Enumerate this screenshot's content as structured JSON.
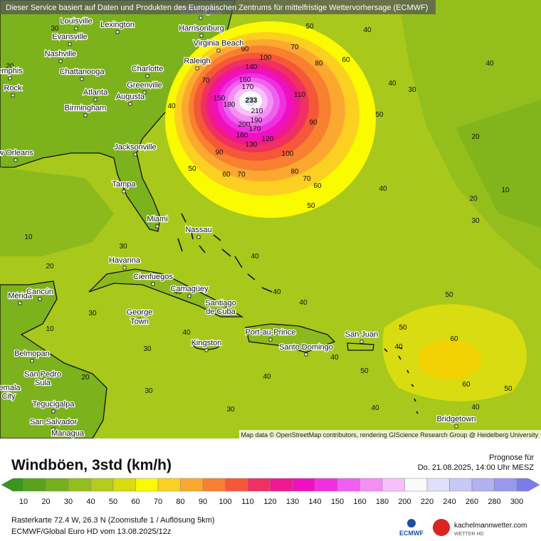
{
  "header": {
    "disclaimer": "Dieser Service basiert auf Daten und Produkten des Europäischen Zentrums für mittelfristige Wettervorhersage (ECMWF)"
  },
  "map": {
    "cities": [
      "Washington",
      "Louisville",
      "Lexington",
      "Evansville",
      "Harrisonburg",
      "Virginia Beach",
      "Nashville",
      "Raleigh",
      "emphis",
      "Chattanooga",
      "Charlotte",
      "Greenville",
      "Atlanta",
      "Augusta",
      "Rock",
      "Birmingham",
      "Jacksonville",
      "w Orleans",
      "Tampa",
      "Miami",
      "Nassau",
      "Havanna",
      "Cienfuegos",
      "Camagüey",
      "Mérida",
      "Cancún",
      "Santiago",
      "de Cuba",
      "George",
      "Town",
      "Port-au-Prince",
      "San Juan",
      "Kingston",
      "Santo Domingo",
      "Belmopan",
      "San Pedro",
      "Sula",
      "temala",
      "City",
      "Tegucigalpa",
      "San Salvador",
      "Managua",
      "Bridgetown"
    ],
    "contour_labels": [
      30,
      20,
      10,
      20,
      10,
      20,
      30,
      30,
      30,
      40,
      50,
      60,
      70,
      80,
      90,
      100,
      110,
      120,
      130,
      140,
      150,
      160,
      170,
      180,
      190,
      200,
      210,
      233,
      170,
      160,
      70,
      80,
      70,
      90,
      100,
      90,
      60,
      70,
      50,
      40,
      50,
      40,
      30,
      60,
      50,
      40,
      40,
      20,
      10,
      20,
      30,
      50,
      60,
      50,
      60,
      50,
      40,
      40,
      40,
      50,
      40,
      40,
      30,
      40,
      40,
      40,
      40,
      30,
      40
    ],
    "attribution": "Map data © OpenStreetMap contributors, rendering GIScience Research Group @ Heidelberg University"
  },
  "footer": {
    "title": "Windböen, 3std (km/h)",
    "forecast_label": "Prognose für",
    "forecast_time": "Do. 21.08.2025, 14:00 Uhr MESZ",
    "raster_info": "Rasterkarte 72.4 W, 26.3 N (Zoomstufe 1 / Auflösung 5km)",
    "model_info": "ECMWF/Global Euro HD vom 13.08.2025/12z",
    "logo_ecmwf": "ECMWF",
    "logo_site": "kachelmannwetter.com",
    "logo_sub": "WETTER HD"
  },
  "legend": {
    "labels": [
      10,
      20,
      30,
      40,
      50,
      60,
      70,
      80,
      90,
      100,
      110,
      120,
      130,
      140,
      150,
      160,
      180,
      200,
      220,
      240,
      260,
      280,
      300
    ],
    "colors": [
      "#3a961c",
      "#58a31c",
      "#76b01c",
      "#94be1c",
      "#b4cc1a",
      "#d8dc10",
      "#fafa00",
      "#fcd020",
      "#fca830",
      "#f88030",
      "#f45838",
      "#f03060",
      "#f01890",
      "#f010c0",
      "#f030e0",
      "#f060f0",
      "#f490f4",
      "#f8c0f8",
      "#fafafa",
      "#e0e0fa",
      "#c8c8f6",
      "#b0b0f2",
      "#9898ee",
      "#7c7ce8"
    ]
  }
}
